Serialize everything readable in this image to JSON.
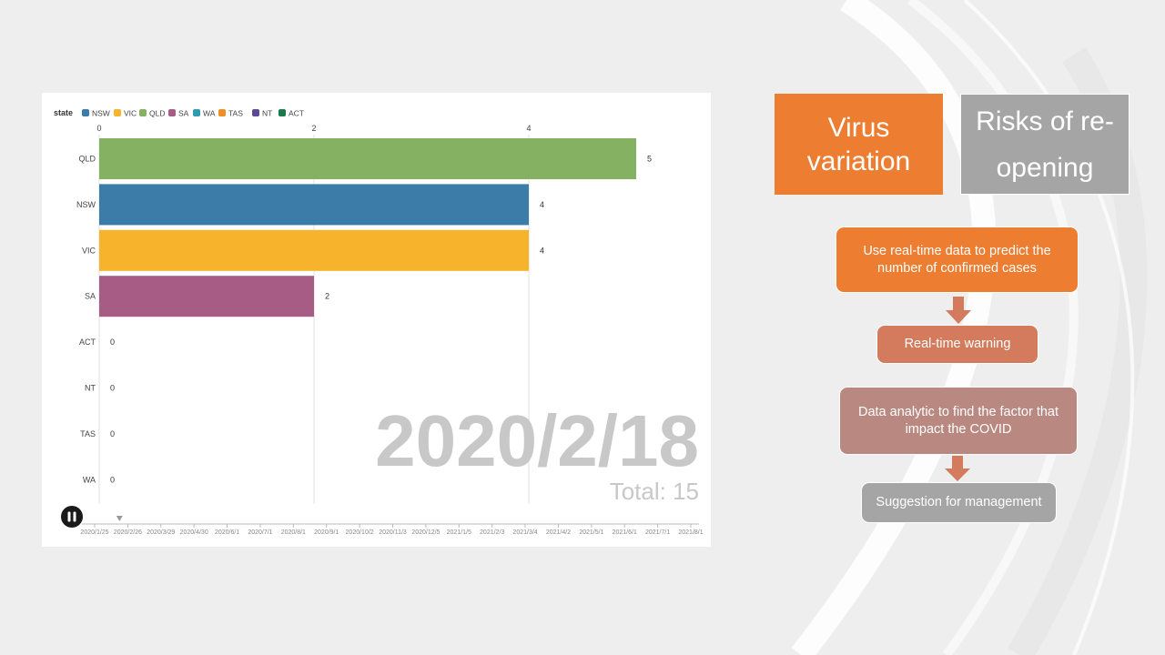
{
  "chart_data": {
    "type": "bar",
    "orientation": "horizontal",
    "legend": {
      "title": "state",
      "placement": "top-left",
      "entries": [
        {
          "name": "NSW",
          "color": "#3b7ca8"
        },
        {
          "name": "VIC",
          "color": "#f6b32b"
        },
        {
          "name": "QLD",
          "color": "#85b163"
        },
        {
          "name": "SA",
          "color": "#a65c85"
        },
        {
          "name": "WA",
          "color": "#2e9bb0"
        },
        {
          "name": "TAS",
          "color": "#f08e2a"
        },
        {
          "name": "NT",
          "color": "#5b4a92"
        },
        {
          "name": "ACT",
          "color": "#1a7a4c"
        }
      ]
    },
    "categories": [
      "QLD",
      "NSW",
      "VIC",
      "SA",
      "ACT",
      "NT",
      "TAS",
      "WA"
    ],
    "values": [
      5,
      4,
      4,
      2,
      0,
      0,
      0,
      0
    ],
    "bar_colors": [
      "#85b163",
      "#3b7ca8",
      "#f6b32b",
      "#a65c85",
      "#1a7a4c",
      "#5b4a92",
      "#f08e2a",
      "#2e9bb0"
    ],
    "x_ticks": [
      "0",
      "2",
      "4"
    ],
    "xlim": [
      0,
      5.8
    ],
    "grid": true,
    "date_label": "2020/2/18",
    "total_label": "Total: 15",
    "timeline_ticks": [
      "2020/1/25",
      "2020/2/26",
      "2020/3/29",
      "2020/4/30",
      "2020/6/1",
      "2020/7/1",
      "2020/8/1",
      "2020/9/1",
      "2020/10/2",
      "2020/11/3",
      "2020/12/5",
      "2021/1/5",
      "2021/2/3",
      "2021/3/4",
      "2021/4/2",
      "2021/5/1",
      "2021/6/1",
      "2021/7/1",
      "2021/8/1"
    ],
    "timeline_position": "2020/2/18"
  },
  "headers": {
    "virus": "Virus variation",
    "risks": "Risks of re-opening"
  },
  "flow": {
    "step1": "Use real-time data to predict the number of confirmed cases",
    "step2": "Real-time warning",
    "step3": "Data analytic to find the factor that impact the COVID",
    "step4": "Suggestion for management"
  },
  "colors": {
    "accent_orange": "#ed7d31",
    "gray": "#a5a5a5",
    "arrow": "#d47a5d"
  },
  "icons": {
    "play_control": "pause-icon"
  }
}
